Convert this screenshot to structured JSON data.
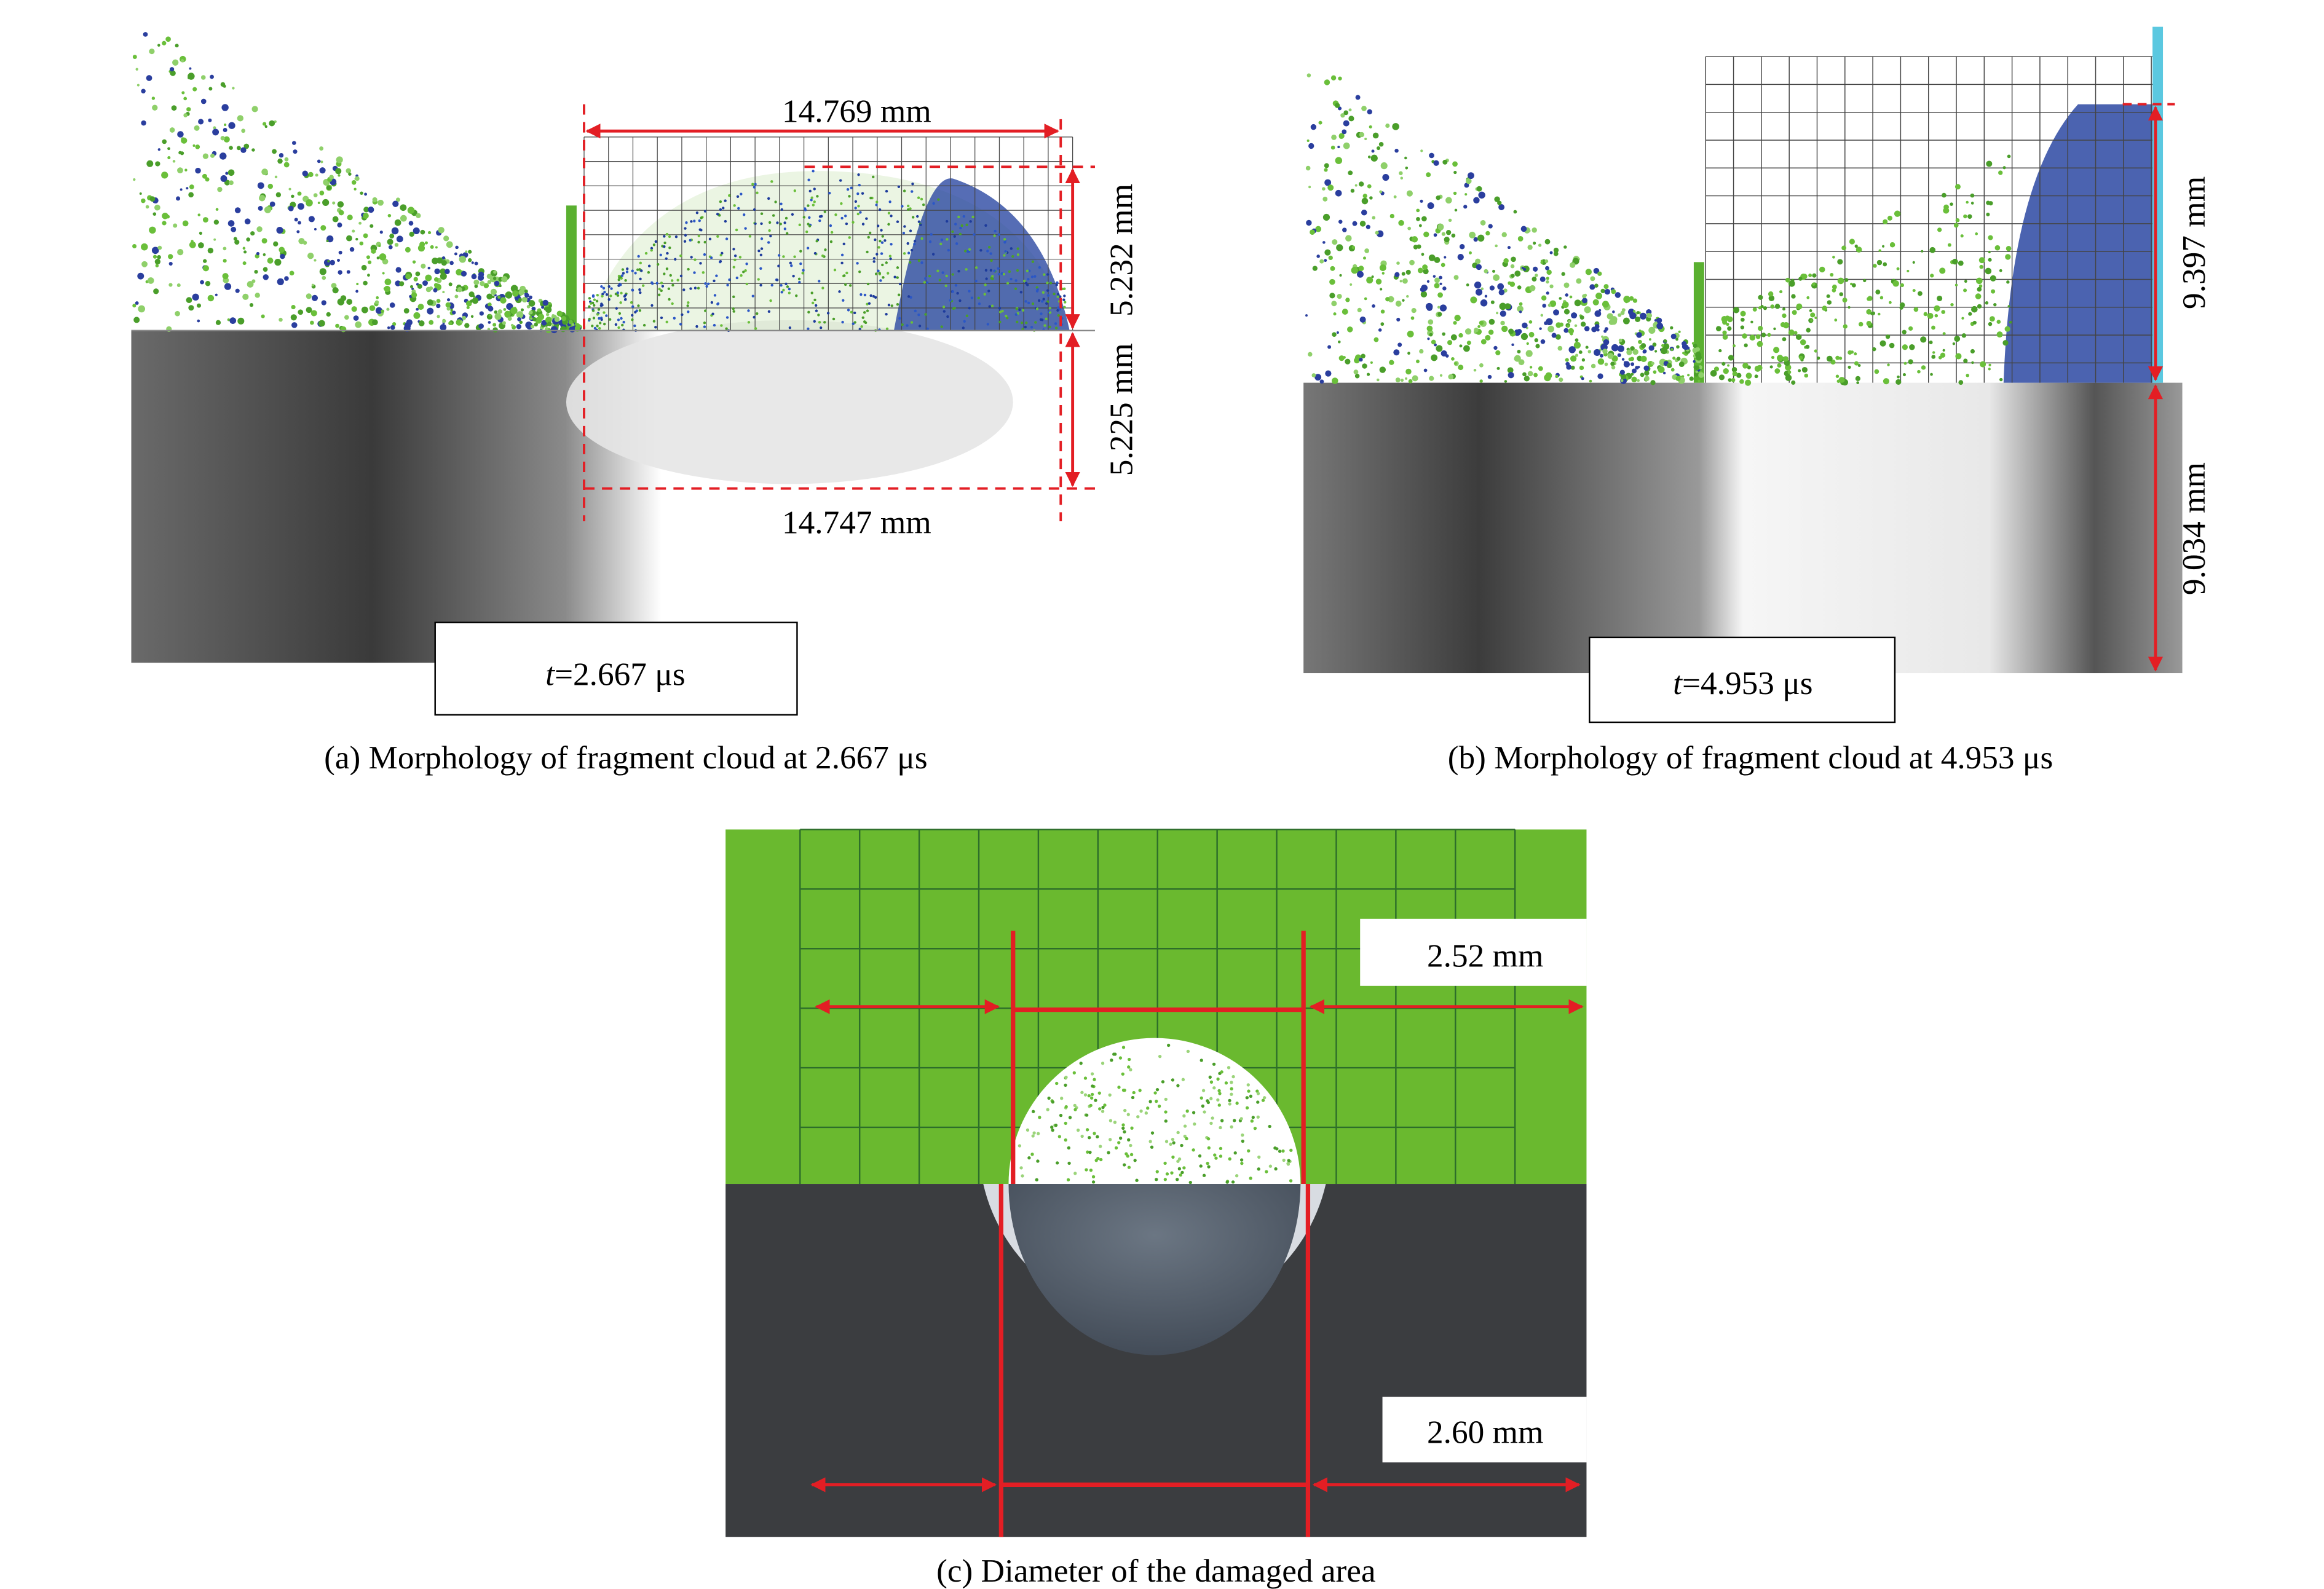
{
  "panels": [
    {
      "caption": "(a) Morphology of fragment cloud at 2.667 μs",
      "time_symbol": "t",
      "time_value": "=2.667 μs",
      "measurements": [
        "14.769 mm",
        "5.232 mm",
        "5.225 mm",
        "14.747 mm"
      ]
    },
    {
      "caption": "(b) Morphology of fragment cloud at 4.953 μs",
      "time_symbol": "t",
      "time_value": "=4.953 μs",
      "measurements": [
        "9.397 mm",
        "9.034 mm"
      ]
    },
    {
      "caption": "(c) Diameter of the damaged area",
      "measurements": [
        "2.52 mm",
        "2.60 mm"
      ]
    }
  ]
}
